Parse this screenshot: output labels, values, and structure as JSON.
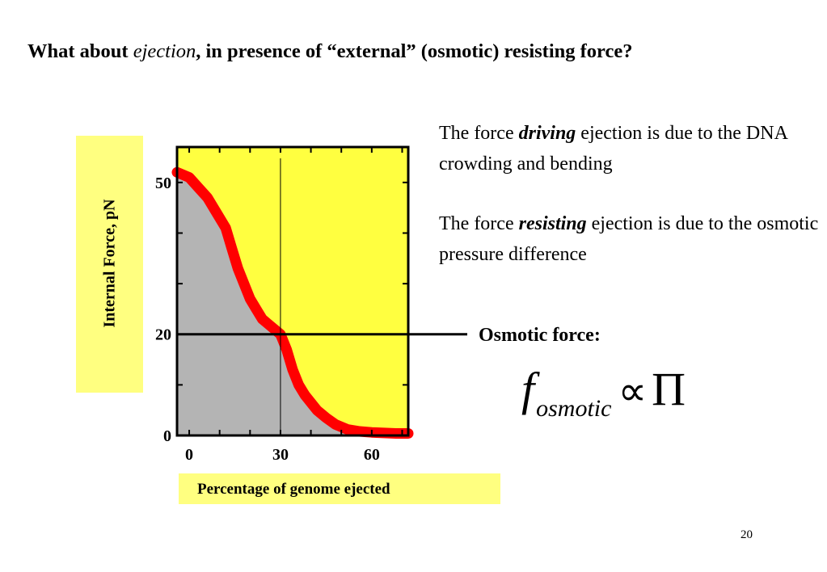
{
  "slide": {
    "title_prefix": "What about ",
    "title_emphasis": "ejection",
    "title_suffix": ", in presence of “external” (osmotic) resisting force?",
    "para1": {
      "before": "The force ",
      "emphasis": "driving",
      "after": " ejection is due to the DNA crowding and bending"
    },
    "para2": {
      "before": "The force ",
      "emphasis": "resisting",
      "after": " ejection is due to the osmotic pressure difference"
    },
    "osmotic_label": "Osmotic force:",
    "formula": {
      "symbol": "f",
      "subscript": "osmotic",
      "operator": "∝",
      "rhs": "Π"
    },
    "page_number": "20"
  },
  "chart_data": {
    "type": "area",
    "title": "",
    "xlabel": "Percentage of genome ejected",
    "ylabel": "Internal Force, pN",
    "xlim": [
      -4,
      72
    ],
    "ylim": [
      0,
      57
    ],
    "x_ticks": [
      0,
      30,
      60
    ],
    "y_ticks": [
      0,
      20,
      50
    ],
    "series": [
      {
        "x": [
          -4,
          0,
          3,
          6,
          9,
          12,
          14,
          16,
          18,
          20,
          22,
          24,
          26,
          28,
          30,
          32,
          34,
          36,
          38,
          40,
          42,
          45,
          48,
          52,
          56,
          60,
          64,
          68,
          72
        ],
        "y": [
          52,
          51,
          49,
          47,
          44,
          41,
          37,
          33,
          30,
          27,
          25,
          23,
          22,
          21,
          20,
          17,
          13,
          10,
          8,
          6.5,
          5,
          3.5,
          2.2,
          1.2,
          0.8,
          0.6,
          0.5,
          0.4,
          0.4
        ]
      }
    ],
    "reference_lines": {
      "horizontal_y": 20,
      "vertical_x": 30
    },
    "colors": {
      "background": "#ffff40",
      "fill": "#b4b4b4",
      "curve": "#ff0000",
      "label_box": "#ffff80"
    }
  }
}
